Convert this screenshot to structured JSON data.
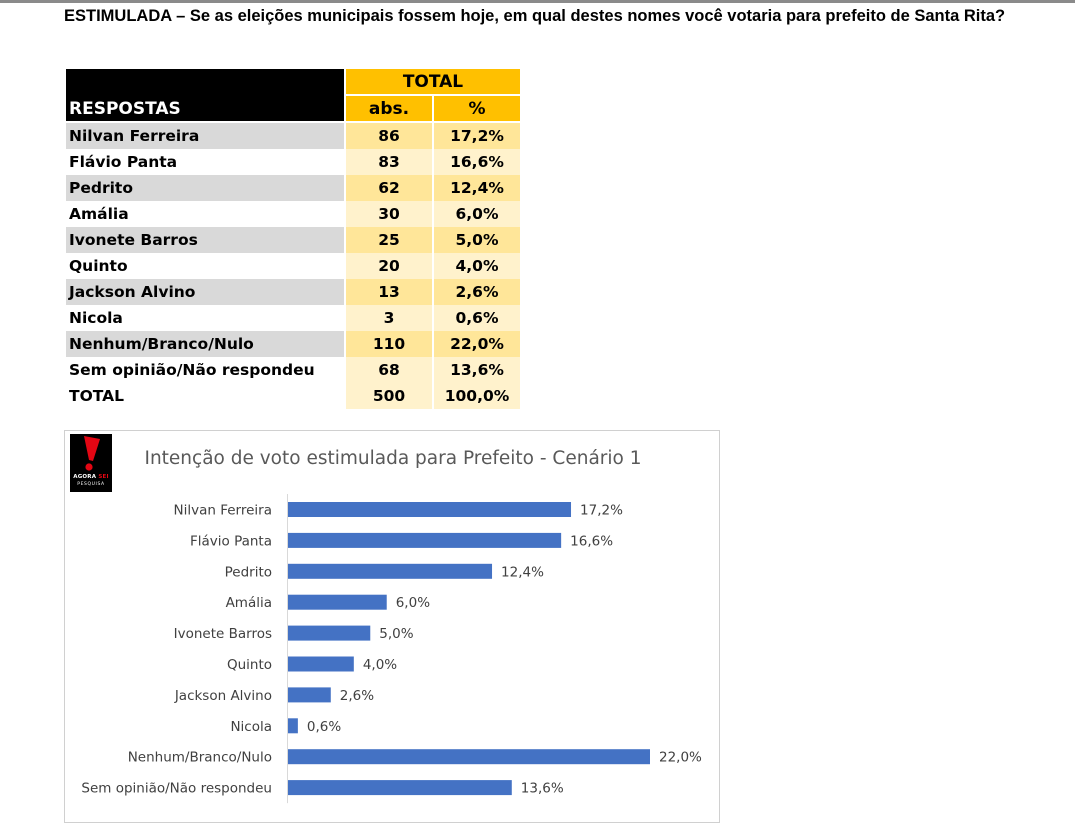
{
  "question": "ESTIMULADA – Se as eleições municipais fossem hoje, em qual destes nomes você votaria para prefeito de Santa Rita?",
  "table": {
    "header_respostas": "RESPOSTAS",
    "header_total": "TOTAL",
    "header_abs": "abs.",
    "header_pct": "%",
    "rows": [
      {
        "name": "Nilvan Ferreira",
        "abs": "86",
        "pct": "17,2%"
      },
      {
        "name": "Flávio Panta",
        "abs": "83",
        "pct": "16,6%"
      },
      {
        "name": "Pedrito",
        "abs": "62",
        "pct": "12,4%"
      },
      {
        "name": "Amália",
        "abs": "30",
        "pct": "6,0%"
      },
      {
        "name": "Ivonete Barros",
        "abs": "25",
        "pct": "5,0%"
      },
      {
        "name": "Quinto",
        "abs": "20",
        "pct": "4,0%"
      },
      {
        "name": "Jackson Alvino",
        "abs": "13",
        "pct": "2,6%"
      },
      {
        "name": "Nicola",
        "abs": "3",
        "pct": "0,6%"
      },
      {
        "name": "Nenhum/Branco/Nulo",
        "abs": "110",
        "pct": "22,0%"
      },
      {
        "name": "Sem opinião/Não respondeu",
        "abs": "68",
        "pct": "13,6%"
      }
    ],
    "total": {
      "name": "TOTAL",
      "abs": "500",
      "pct": "100,0%"
    }
  },
  "logo": {
    "word1": "AGORA",
    "word2": "SEI",
    "word3": "PESQUISA"
  },
  "colors": {
    "bar": "#4472c4",
    "header_gold": "#ffc000",
    "row_gold": "#ffe699",
    "row_light": "#fff2cc",
    "row_gray": "#d9d9d9",
    "logo_red": "#e30613"
  },
  "chart_data": {
    "type": "bar",
    "orientation": "horizontal",
    "title": "Intenção de voto estimulada para Prefeito - Cenário 1",
    "categories": [
      "Nilvan Ferreira",
      "Flávio Panta",
      "Pedrito",
      "Amália",
      "Ivonete Barros",
      "Quinto",
      "Jackson Alvino",
      "Nicola",
      "Nenhum/Branco/Nulo",
      "Sem opinião/Não respondeu"
    ],
    "values": [
      17.2,
      16.6,
      12.4,
      6.0,
      5.0,
      4.0,
      2.6,
      0.6,
      22.0,
      13.6
    ],
    "value_labels": [
      "17,2%",
      "16,6%",
      "12,4%",
      "6,0%",
      "5,0%",
      "4,0%",
      "2,6%",
      "0,6%",
      "22,0%",
      "13,6%"
    ],
    "xlim": [
      0,
      22.0
    ],
    "grid": false,
    "legend": "none"
  }
}
